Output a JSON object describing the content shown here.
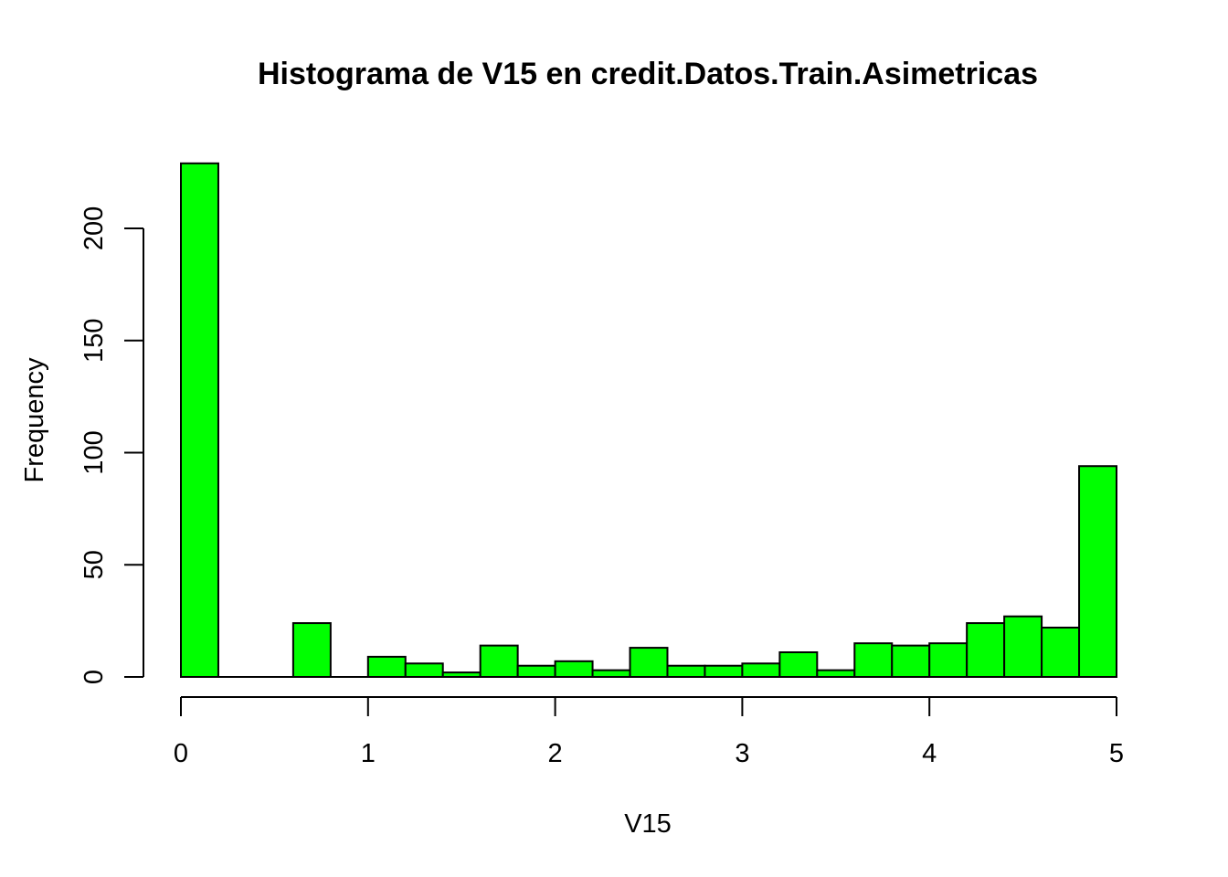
{
  "chart_data": {
    "type": "bar",
    "title": "Histograma de V15 en credit.Datos.Train.Asimetricas",
    "xlabel": "V15",
    "ylabel": "Frequency",
    "bin_width": 0.2,
    "bin_start": 0,
    "values": [
      229,
      0,
      0,
      24,
      0,
      9,
      6,
      2,
      14,
      5,
      7,
      3,
      13,
      5,
      5,
      6,
      11,
      3,
      15,
      14,
      15,
      24,
      27,
      22,
      94
    ],
    "xlim": [
      0,
      5
    ],
    "ylim": [
      0,
      229
    ],
    "x_ticks": [
      "0",
      "1",
      "2",
      "3",
      "4",
      "5"
    ],
    "y_ticks": [
      "0",
      "50",
      "100",
      "150",
      "200"
    ],
    "bar_color": "#00FF00",
    "grid": false
  }
}
